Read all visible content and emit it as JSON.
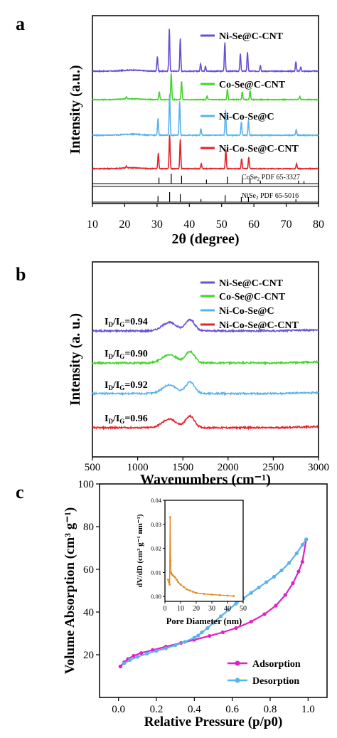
{
  "chart_data": [
    {
      "panel_label": "a",
      "type": "line",
      "xlabel": "2θ (degree)",
      "ylabel": "Intensity (a.u.)",
      "xlim": [
        10,
        80
      ],
      "xticks": [
        10,
        20,
        30,
        40,
        50,
        60,
        70,
        80
      ],
      "series": [
        {
          "name": "Ni-Se@C-CNT",
          "color": "#6a4fd6",
          "peaks": [
            [
              30.1,
              0.35
            ],
            [
              33.8,
              1.0
            ],
            [
              37.2,
              0.76
            ],
            [
              43.5,
              0.18
            ],
            [
              45.0,
              0.12
            ],
            [
              51.0,
              0.68
            ],
            [
              55.8,
              0.4
            ],
            [
              58.0,
              0.45
            ],
            [
              62.0,
              0.14
            ],
            [
              73.0,
              0.22
            ],
            [
              74.5,
              0.1
            ]
          ]
        },
        {
          "name": "Co-Se@C-CNT",
          "color": "#44d42a",
          "peaks": [
            [
              20.5,
              0.06
            ],
            [
              30.7,
              0.22
            ],
            [
              34.4,
              0.75
            ],
            [
              37.6,
              0.52
            ],
            [
              45.5,
              0.1
            ],
            [
              51.8,
              0.3
            ],
            [
              56.4,
              0.22
            ],
            [
              58.8,
              0.25
            ],
            [
              74.2,
              0.1
            ]
          ]
        },
        {
          "name": "Ni-Co-Se@C",
          "color": "#5ab2ea",
          "peaks": [
            [
              30.3,
              0.4
            ],
            [
              33.9,
              1.0
            ],
            [
              37.0,
              0.82
            ],
            [
              43.6,
              0.15
            ],
            [
              51.2,
              0.62
            ],
            [
              56.1,
              0.32
            ],
            [
              58.3,
              0.36
            ],
            [
              73.1,
              0.14
            ]
          ]
        },
        {
          "name": "Ni-Co-Se@C-CNT",
          "color": "#e2232b",
          "peaks": [
            [
              20.5,
              0.06
            ],
            [
              30.4,
              0.45
            ],
            [
              33.9,
              1.0
            ],
            [
              37.2,
              0.85
            ],
            [
              43.7,
              0.15
            ],
            [
              51.3,
              0.55
            ],
            [
              56.2,
              0.3
            ],
            [
              58.4,
              0.33
            ],
            [
              73.2,
              0.15
            ]
          ]
        }
      ],
      "references": [
        {
          "label": "CoSe2 PDF 65-3327",
          "label_main": "CoSe",
          "label_sub": "2",
          "label_rest": " PDF 65-3327",
          "lines": [
            [
              30.6,
              0.6
            ],
            [
              34.4,
              1.0
            ],
            [
              37.6,
              0.8
            ],
            [
              45.3,
              0.4
            ],
            [
              51.8,
              0.7
            ],
            [
              56.4,
              0.5
            ],
            [
              58.8,
              0.5
            ],
            [
              62.0,
              0.3
            ],
            [
              73.8,
              0.3
            ],
            [
              75.5,
              0.25
            ]
          ]
        },
        {
          "label": "NiSe2 PDF 65-5016",
          "label_main": "NiSe",
          "label_sub": "2",
          "label_rest": " PDF 65-5016",
          "lines": [
            [
              30.3,
              0.6
            ],
            [
              33.9,
              1.0
            ],
            [
              37.2,
              0.8
            ],
            [
              43.6,
              0.3
            ],
            [
              51.1,
              0.7
            ],
            [
              56.1,
              0.5
            ],
            [
              58.3,
              0.5
            ],
            [
              73.0,
              0.3
            ]
          ]
        }
      ]
    },
    {
      "panel_label": "b",
      "type": "line",
      "xlabel": "Wavenumbers (cm⁻¹)",
      "ylabel": "Intensity (a. u.)",
      "xlim": [
        500,
        3000
      ],
      "xticks": [
        500,
        1000,
        1500,
        2000,
        2500,
        3000
      ],
      "series": [
        {
          "name": "Ni-Se@C-CNT",
          "color": "#6a4fd6",
          "ratio_label": "ID/IG=0.94",
          "ratio": "0.94"
        },
        {
          "name": "Co-Se@C-CNT",
          "color": "#44d42a",
          "ratio_label": "ID/IG=0.90",
          "ratio": "0.90"
        },
        {
          "name": "Ni-Co-Se@C",
          "color": "#5ab2ea",
          "ratio_label": "ID/IG=0.92",
          "ratio": "0.92"
        },
        {
          "name": "Ni-Co-Se@C-CNT",
          "color": "#e2232b",
          "ratio_label": "ID/IG=0.96",
          "ratio": "0.96"
        }
      ],
      "bands": {
        "D": 1350,
        "G": 1580
      }
    },
    {
      "panel_label": "c",
      "type": "line",
      "xlabel": "Relative Pressure (p/p0)",
      "ylabel": "Volume Absorption (cm³ g⁻¹)",
      "xlim": [
        -0.1,
        1.1
      ],
      "ylim": [
        0,
        100
      ],
      "xticks": [
        0.0,
        0.2,
        0.4,
        0.6,
        0.8,
        1.0
      ],
      "yticks": [
        20,
        40,
        60,
        80,
        100
      ],
      "series": [
        {
          "name": "Adsorption",
          "color": "#e020c8",
          "x": [
            0.01,
            0.03,
            0.05,
            0.08,
            0.12,
            0.18,
            0.25,
            0.33,
            0.4,
            0.48,
            0.55,
            0.62,
            0.7,
            0.77,
            0.83,
            0.88,
            0.92,
            0.95,
            0.97,
            0.99
          ],
          "y": [
            14.5,
            16.5,
            18.0,
            19.5,
            20.8,
            22.2,
            23.8,
            25.5,
            27.0,
            28.8,
            30.5,
            32.5,
            35.5,
            39.0,
            43.0,
            48.0,
            53.5,
            59.0,
            63.5,
            74.0
          ]
        },
        {
          "name": "Desorption",
          "color": "#5ab2ea",
          "x": [
            0.99,
            0.97,
            0.94,
            0.9,
            0.86,
            0.82,
            0.78,
            0.74,
            0.7,
            0.66,
            0.62,
            0.58,
            0.54,
            0.5,
            0.47,
            0.44,
            0.42,
            0.4,
            0.35,
            0.3,
            0.25,
            0.2,
            0.15,
            0.1,
            0.06,
            0.03
          ],
          "y": [
            74.0,
            71.5,
            67.5,
            63.0,
            59.5,
            56.5,
            54.0,
            51.5,
            49.0,
            46.5,
            44.0,
            41.0,
            38.0,
            35.0,
            32.5,
            30.5,
            29.0,
            28.0,
            26.0,
            24.5,
            23.0,
            21.8,
            20.5,
            19.0,
            17.5,
            16.0
          ]
        }
      ],
      "inset": {
        "xlabel": "Pore Diameter (nm)",
        "ylabel": "dV/dD (cm³ g⁻¹ nm⁻¹)",
        "xlim": [
          0,
          50
        ],
        "ylim": [
          -0.002,
          0.04
        ],
        "xticks": [
          0,
          10,
          20,
          30,
          40,
          50
        ],
        "yticks": [
          0.0,
          0.01,
          0.02,
          0.03,
          0.04
        ],
        "series": [
          {
            "name": "",
            "color": "#e08a1e",
            "x": [
              2.0,
              2.5,
              3.0,
              3.3,
              3.6,
              3.9,
              4.2,
              4.8,
              5.5,
              6.5,
              7.5,
              8.5,
              10,
              12,
              14,
              16,
              18,
              20,
              25,
              30,
              35,
              40,
              44
            ],
            "y": [
              0.007,
              0.006,
              0.005,
              0.033,
              0.015,
              0.01,
              0.0095,
              0.009,
              0.0085,
              0.008,
              0.007,
              0.006,
              0.005,
              0.004,
              0.003,
              0.0025,
              0.002,
              0.0015,
              0.0011,
              0.0008,
              0.0006,
              0.0004,
              0.0002
            ]
          }
        ]
      }
    }
  ]
}
